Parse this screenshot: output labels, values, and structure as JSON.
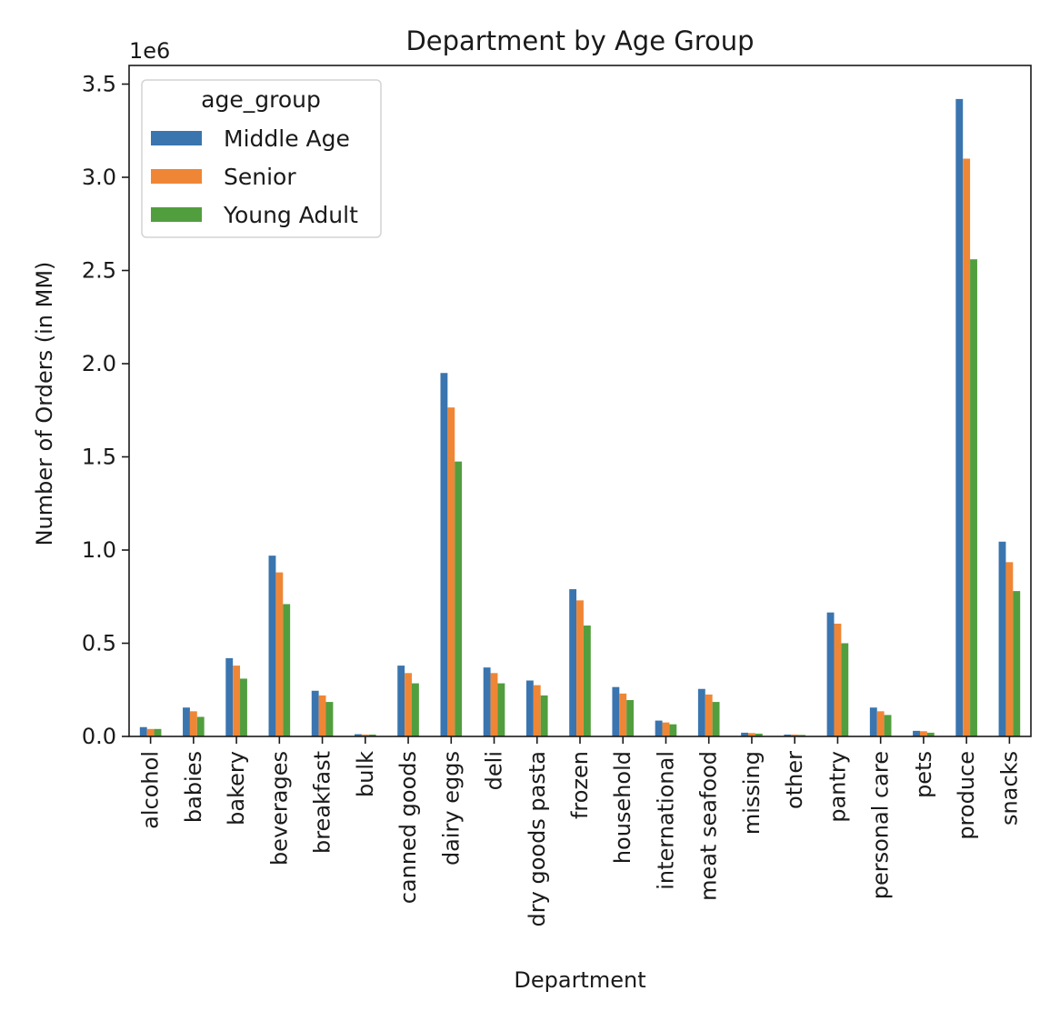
{
  "chart_data": {
    "type": "bar",
    "title": "Department by Age Group",
    "xlabel": "Department",
    "ylabel": "Number of Orders (in MM)",
    "offset_label": "1e6",
    "scale": 1000000,
    "ylim": [
      0,
      3600000
    ],
    "yticks": [
      0,
      500000,
      1000000,
      1500000,
      2000000,
      2500000,
      3000000,
      3500000
    ],
    "ytick_labels": [
      "0.0",
      "0.5",
      "1.0",
      "1.5",
      "2.0",
      "2.5",
      "3.0",
      "3.5"
    ],
    "grid": false,
    "legend": {
      "title": "age_group",
      "placement": "top-left"
    },
    "categories": [
      "alcohol",
      "babies",
      "bakery",
      "beverages",
      "breakfast",
      "bulk",
      "canned goods",
      "dairy eggs",
      "deli",
      "dry goods pasta",
      "frozen",
      "household",
      "international",
      "meat seafood",
      "missing",
      "other",
      "pantry",
      "personal care",
      "pets",
      "produce",
      "snacks"
    ],
    "series": [
      {
        "name": "Middle Age",
        "color": "#3a75af",
        "values": [
          50000,
          155000,
          420000,
          970000,
          245000,
          12000,
          380000,
          1950000,
          370000,
          300000,
          790000,
          265000,
          85000,
          255000,
          20000,
          10000,
          665000,
          155000,
          30000,
          3420000,
          1045000
        ]
      },
      {
        "name": "Senior",
        "color": "#ef8636",
        "values": [
          40000,
          135000,
          380000,
          880000,
          220000,
          10000,
          340000,
          1765000,
          340000,
          275000,
          730000,
          230000,
          75000,
          225000,
          18000,
          10000,
          605000,
          135000,
          28000,
          3100000,
          935000
        ]
      },
      {
        "name": "Young Adult",
        "color": "#519e3e",
        "values": [
          40000,
          105000,
          310000,
          710000,
          185000,
          10000,
          285000,
          1475000,
          285000,
          220000,
          595000,
          195000,
          65000,
          185000,
          15000,
          8000,
          500000,
          115000,
          20000,
          2560000,
          780000
        ]
      }
    ]
  }
}
